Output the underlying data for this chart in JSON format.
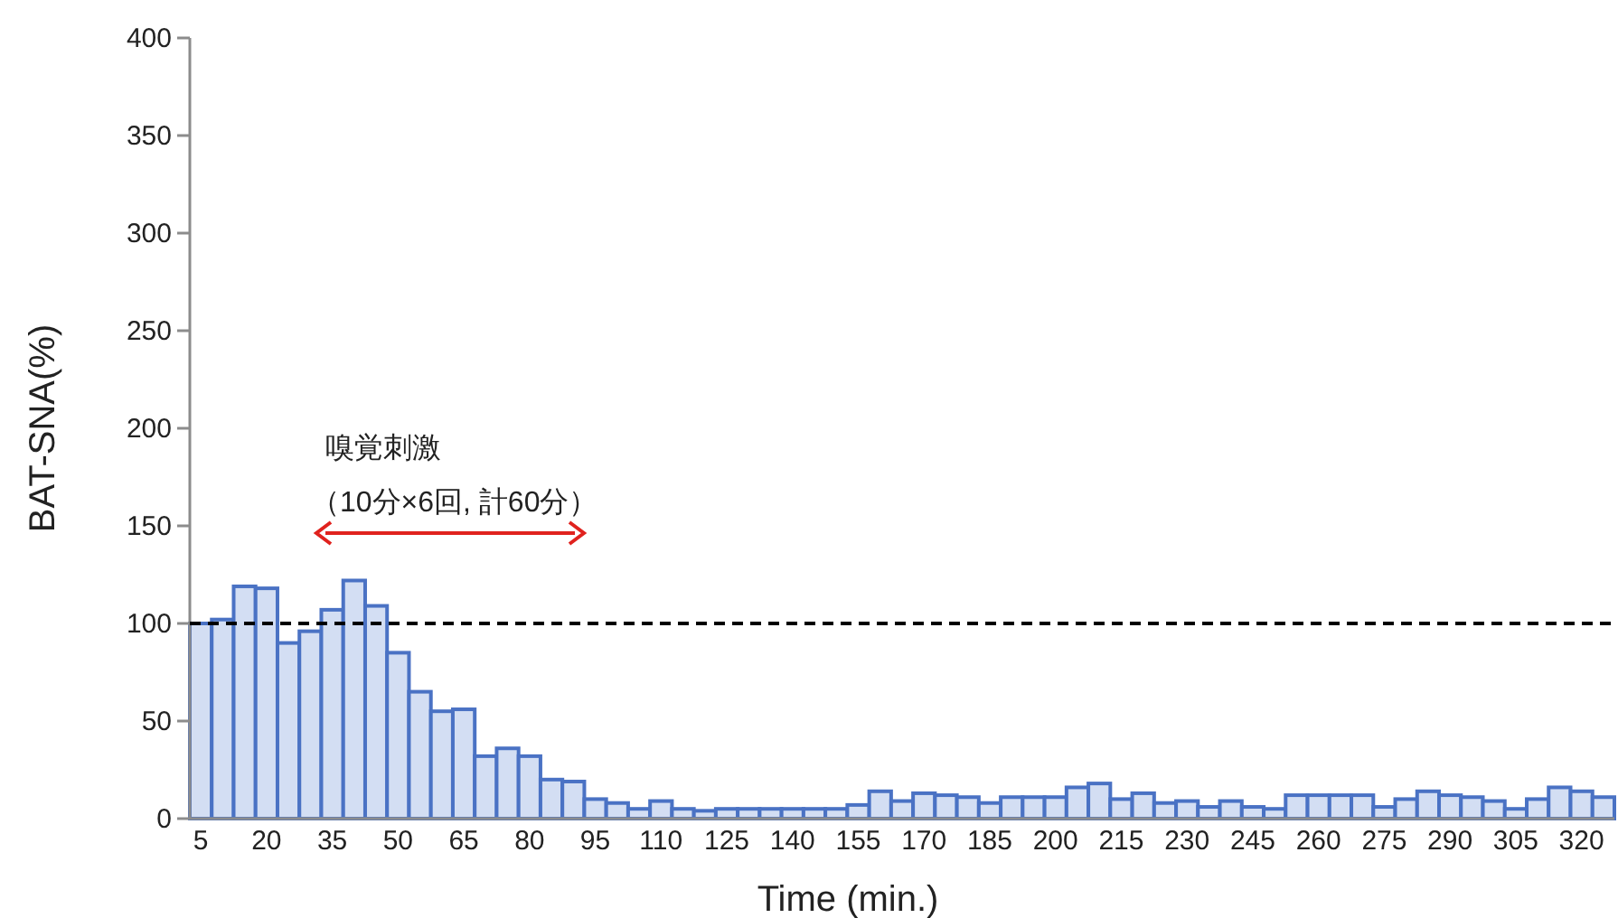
{
  "chart_data": {
    "type": "bar",
    "xlabel": "Time (min.)",
    "ylabel": "BAT-SNA(%)",
    "categories": [
      "5",
      null,
      null,
      "20",
      null,
      null,
      "35",
      null,
      null,
      "50",
      null,
      null,
      "65",
      null,
      null,
      "80",
      null,
      null,
      "95",
      null,
      null,
      "110",
      null,
      null,
      "125",
      null,
      null,
      "140",
      null,
      null,
      "155",
      null,
      null,
      "170",
      null,
      null,
      "185",
      null,
      null,
      "200",
      null,
      null,
      "215",
      null,
      null,
      "230",
      null,
      null,
      "245",
      null,
      null,
      "260",
      null,
      null,
      "275",
      null,
      null,
      "290",
      null,
      null,
      "305",
      null,
      null,
      "320",
      null
    ],
    "values": [
      100,
      102,
      119,
      118,
      90,
      96,
      107,
      122,
      109,
      85,
      65,
      55,
      56,
      32,
      36,
      32,
      20,
      19,
      10,
      8,
      5,
      9,
      5,
      4,
      5,
      5,
      5,
      5,
      5,
      5,
      7,
      14,
      9,
      13,
      12,
      11,
      8,
      11,
      11,
      11,
      16,
      18,
      10,
      13,
      8,
      9,
      6,
      9,
      6,
      5,
      12,
      12,
      12,
      12,
      6,
      10,
      14,
      12,
      11,
      9,
      5,
      10,
      16,
      14,
      11
    ],
    "color": "#d3def3",
    "ylim": [
      0,
      400
    ],
    "yticks": [
      0,
      50,
      100,
      150,
      200,
      250,
      300,
      350,
      400
    ],
    "ref_lines": [
      {
        "axis": "y",
        "value": 100,
        "color": "#000000",
        "line_style": "dashed"
      }
    ],
    "annotations": [
      "嗅覚刺激",
      "（10分×6回, 計60分）"
    ],
    "grid": false
  }
}
